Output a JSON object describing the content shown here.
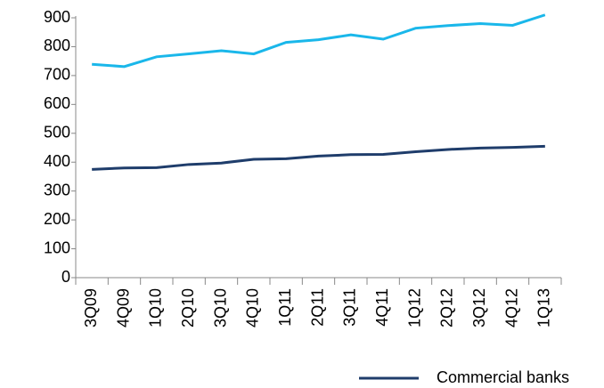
{
  "chart_data": {
    "type": "line",
    "categories": [
      "3Q09",
      "4Q09",
      "1Q10",
      "2Q10",
      "3Q10",
      "4Q10",
      "1Q11",
      "2Q11",
      "3Q11",
      "4Q11",
      "1Q12",
      "2Q12",
      "3Q12",
      "4Q12",
      "1Q13"
    ],
    "series": [
      {
        "color": "#1ab7ea",
        "values": [
          739,
          731,
          765,
          775,
          786,
          775,
          815,
          824,
          841,
          826,
          864,
          873,
          880,
          874,
          910
        ]
      },
      {
        "name": "Commercial banks",
        "color": "#1f3d6b",
        "values": [
          375,
          380,
          381,
          392,
          397,
          410,
          412,
          421,
          426,
          427,
          436,
          444,
          449,
          451,
          455
        ]
      }
    ],
    "ylim": [
      0,
      900
    ],
    "yticks": [
      0,
      100,
      200,
      300,
      400,
      500,
      600,
      700,
      800,
      900
    ],
    "legend": "bottom-right"
  }
}
